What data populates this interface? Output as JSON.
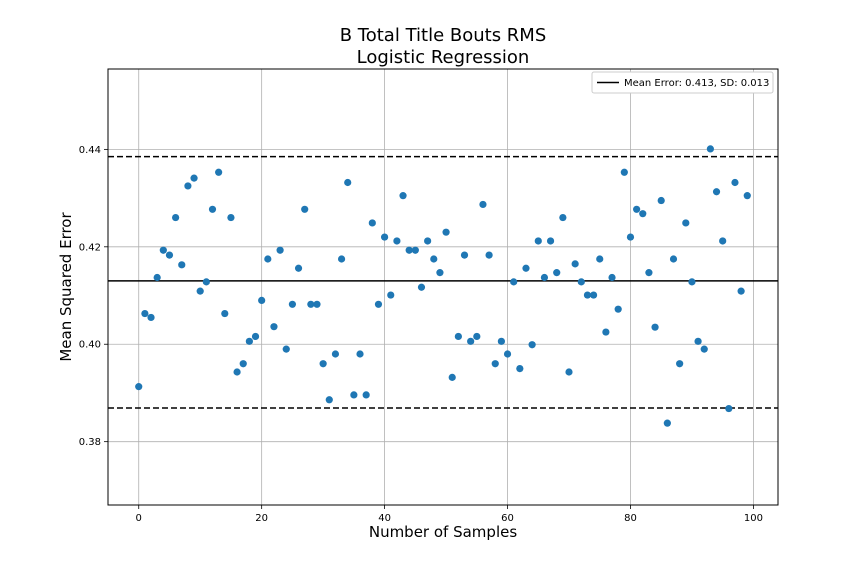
{
  "chart_data": {
    "type": "scatter",
    "title": "B Total Title Bouts RMS",
    "subtitle": "Logistic Regression",
    "xlabel": "Number of Samples",
    "ylabel": "Mean Squared Error",
    "xlim": [
      -5,
      104
    ],
    "ylim": [
      0.367,
      0.4565
    ],
    "xticks": [
      0,
      20,
      40,
      60,
      80,
      100
    ],
    "xtick_labels": [
      "0",
      "20",
      "40",
      "60",
      "80",
      "100"
    ],
    "yticks": [
      0.38,
      0.4,
      0.42,
      0.44
    ],
    "ytick_labels": [
      "0.38",
      "0.40",
      "0.42",
      "0.44"
    ],
    "grid": true,
    "legend_position": "top-right",
    "point_color": "#1f77b4",
    "series": [
      {
        "x": [
          0,
          1,
          2,
          3,
          4,
          5,
          6,
          7,
          8,
          9,
          10,
          11,
          12,
          13,
          14,
          15,
          16,
          17,
          18,
          19,
          20,
          21,
          22,
          23,
          24,
          25,
          26,
          27,
          28,
          29,
          30,
          31,
          32,
          33,
          34,
          35,
          36,
          37,
          38,
          39,
          40,
          41,
          42,
          43,
          44,
          45,
          46,
          47,
          48,
          49,
          50,
          51,
          52,
          53,
          54,
          55,
          56,
          57,
          58,
          59,
          60,
          61,
          62,
          63,
          64,
          65,
          66,
          67,
          68,
          69,
          70,
          71,
          72,
          73,
          74,
          75,
          76,
          77,
          78,
          79,
          80,
          81,
          82,
          83,
          84,
          85,
          86,
          87,
          88,
          89,
          90,
          91,
          92,
          93,
          94,
          95,
          96,
          97,
          98,
          99
        ],
        "y": [
          0.3913,
          0.4063,
          0.4055,
          0.4137,
          0.4193,
          0.4183,
          0.426,
          0.4163,
          0.4325,
          0.4341,
          0.4109,
          0.4128,
          0.4277,
          0.4353,
          0.4063,
          0.426,
          0.3943,
          0.396,
          0.4006,
          0.4016,
          0.409,
          0.4175,
          0.4036,
          0.4193,
          0.399,
          0.4082,
          0.4156,
          0.4277,
          0.4082,
          0.4082,
          0.396,
          0.3886,
          0.398,
          0.4175,
          0.4332,
          0.3896,
          0.398,
          0.3896,
          0.4249,
          0.4082,
          0.422,
          0.4101,
          0.4212,
          0.4305,
          0.4193,
          0.4193,
          0.4117,
          0.4212,
          0.4175,
          0.4147,
          0.423,
          0.3932,
          0.4016,
          0.4183,
          0.4006,
          0.4016,
          0.4287,
          0.4183,
          0.396,
          0.4006,
          0.398,
          0.4128,
          0.395,
          0.4156,
          0.3999,
          0.4212,
          0.4137,
          0.4212,
          0.4147,
          0.426,
          0.3943,
          0.4165,
          0.4128,
          0.4101,
          0.4101,
          0.4175,
          0.4025,
          0.4137,
          0.4072,
          0.4353,
          0.422,
          0.4277,
          0.4268,
          0.4147,
          0.4035,
          0.4295,
          0.3838,
          0.4175,
          0.396,
          0.4249,
          0.4128,
          0.4006,
          0.399,
          0.4401,
          0.4313,
          0.4212,
          0.3868,
          0.4332,
          0.4109,
          0.4305
        ]
      }
    ],
    "hlines": [
      {
        "y": 0.413,
        "style": "solid",
        "legend": "Mean Error: 0.413, SD: 0.013"
      },
      {
        "y": 0.4385,
        "style": "dashed"
      },
      {
        "y": 0.3869,
        "style": "dashed"
      }
    ]
  }
}
